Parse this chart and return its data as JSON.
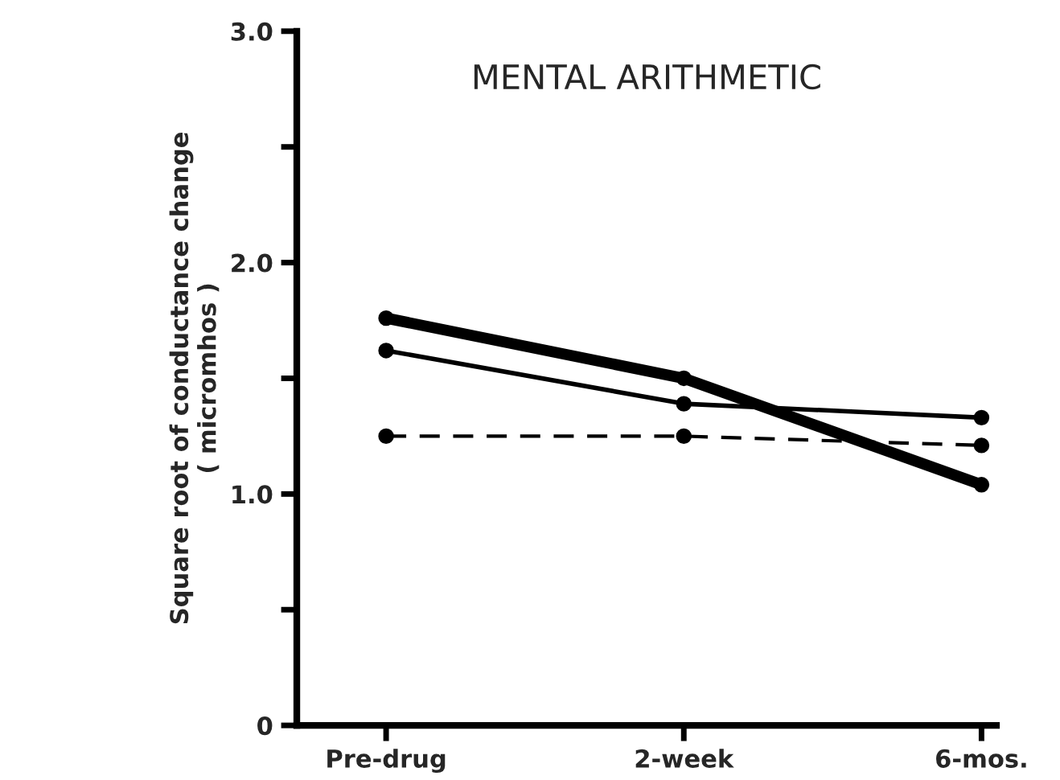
{
  "chart_data": {
    "type": "line",
    "title": "MENTAL ARITHMETIC",
    "ylabel": "Square root of conductance change\n( micromhos )",
    "categories": [
      "Pre-drug",
      "2-week",
      "6-mos."
    ],
    "ylim": [
      0,
      3.0
    ],
    "yticks": [
      {
        "value": 0,
        "label": "0"
      },
      {
        "value": 0.5,
        "label": null
      },
      {
        "value": 1.0,
        "label": "1.0"
      },
      {
        "value": 1.5,
        "label": null
      },
      {
        "value": 2.0,
        "label": "2.0"
      },
      {
        "value": 2.5,
        "label": null
      },
      {
        "value": 3.0,
        "label": "3.0"
      }
    ],
    "grid": false,
    "legend": false,
    "marker": "circle",
    "series": [
      {
        "color": "#000000",
        "values": [
          1.76,
          1.5,
          1.04
        ],
        "line_style": "solid"
      },
      {
        "color": "#000000",
        "values": [
          1.62,
          1.39,
          1.33
        ],
        "line_style": "solid"
      },
      {
        "color": "#000000",
        "values": [
          1.25,
          1.25,
          1.21
        ],
        "line_style": "dashed"
      }
    ]
  }
}
